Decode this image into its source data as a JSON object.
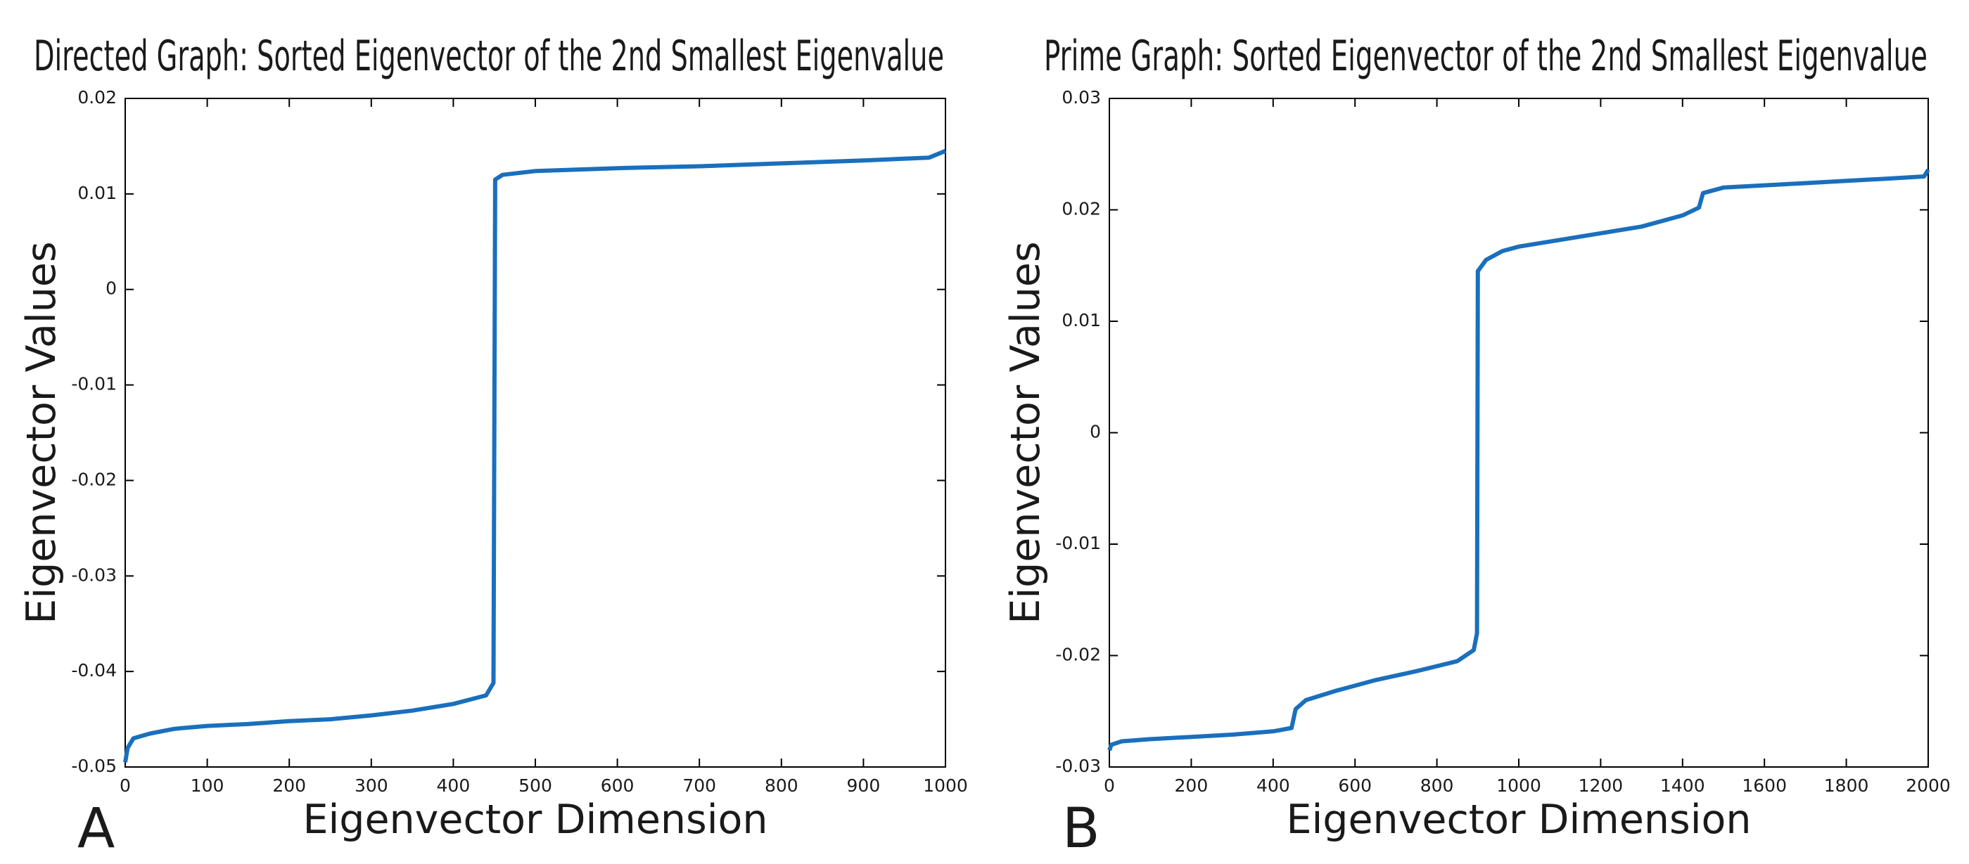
{
  "chart_data": [
    {
      "type": "line",
      "panel_label": "A",
      "title": "Directed Graph: Sorted Eigenvector of the 2nd Smallest Eigenvalue",
      "x_label": "Eigenvector Dimension",
      "y_label": "Eigenvector Values",
      "xlim": [
        0,
        1000
      ],
      "ylim": [
        -0.05,
        0.02
      ],
      "xticks": [
        0,
        100,
        200,
        300,
        400,
        500,
        600,
        700,
        800,
        900,
        1000
      ],
      "yticks": [
        -0.05,
        -0.04,
        -0.03,
        -0.02,
        -0.01,
        0,
        0.01,
        0.02
      ],
      "grid": false,
      "x": [
        0,
        3,
        10,
        30,
        60,
        100,
        150,
        200,
        250,
        300,
        350,
        400,
        440,
        449,
        451,
        460,
        500,
        600,
        700,
        800,
        900,
        980,
        1000
      ],
      "series": [
        {
          "color": "#1a6fbd",
          "values": [
            -0.0495,
            -0.048,
            -0.047,
            -0.0465,
            -0.046,
            -0.0457,
            -0.0455,
            -0.0452,
            -0.045,
            -0.0446,
            -0.0441,
            -0.0434,
            -0.0425,
            -0.0412,
            0.0115,
            0.012,
            0.0124,
            0.0127,
            0.0129,
            0.0132,
            0.0135,
            0.0138,
            0.0145
          ]
        }
      ]
    },
    {
      "type": "line",
      "panel_label": "B",
      "title": "Prime Graph: Sorted Eigenvector of the 2nd Smallest Eigenvalue",
      "x_label": "Eigenvector Dimension",
      "y_label": "Eigenvector Values",
      "xlim": [
        0,
        2000
      ],
      "ylim": [
        -0.03,
        0.03
      ],
      "xticks": [
        0,
        200,
        400,
        600,
        800,
        1000,
        1200,
        1400,
        1600,
        1800,
        2000
      ],
      "yticks": [
        -0.03,
        -0.02,
        -0.01,
        0,
        0.01,
        0.02,
        0.03
      ],
      "grid": false,
      "x": [
        0,
        5,
        30,
        100,
        200,
        300,
        400,
        445,
        455,
        480,
        550,
        650,
        750,
        850,
        890,
        898,
        900,
        920,
        960,
        1000,
        1100,
        1200,
        1300,
        1400,
        1440,
        1450,
        1500,
        1600,
        1700,
        1800,
        1900,
        1990,
        2000
      ],
      "series": [
        {
          "color": "#1a6fbd",
          "values": [
            -0.0285,
            -0.028,
            -0.0277,
            -0.0275,
            -0.0273,
            -0.0271,
            -0.0268,
            -0.0265,
            -0.0248,
            -0.024,
            -0.0232,
            -0.0222,
            -0.0214,
            -0.0205,
            -0.0195,
            -0.018,
            0.0145,
            0.0155,
            0.0163,
            0.0167,
            0.0173,
            0.0179,
            0.0185,
            0.0195,
            0.0202,
            0.0215,
            0.022,
            0.0222,
            0.0224,
            0.0226,
            0.0228,
            0.023,
            0.0236
          ]
        }
      ]
    }
  ]
}
